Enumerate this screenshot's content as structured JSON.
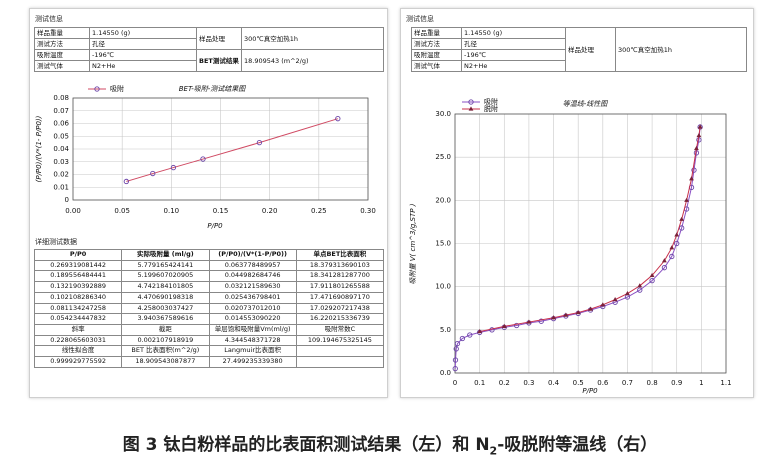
{
  "left_panel": {
    "heading": "测试信息",
    "info": [
      [
        "样品重量",
        "1.14550 (g)",
        "样品处理",
        "300℃真空加热1h"
      ],
      [
        "测试方法",
        "孔径"
      ],
      [
        "吸附温度",
        "-196℃",
        "BET测试结果",
        "18.909543 (m^2/g)"
      ],
      [
        "测试气体",
        "N2+He"
      ]
    ],
    "detail_heading": "详细测试数据",
    "detail_header": [
      "P/P0",
      "实际吸附量 (ml/g)",
      "(P/P0)/(V*(1-P/P0))",
      "单点BET比表面积"
    ],
    "detail_rows": [
      [
        "0.269319081442",
        "5.779165424141",
        "0.063778489957",
        "18.379313690103"
      ],
      [
        "0.189556484441",
        "5.199607020905",
        "0.044982684746",
        "18.341281287700"
      ],
      [
        "0.132190392889",
        "4.742184101805",
        "0.032121589630",
        "17.911801265588"
      ],
      [
        "0.102108286340",
        "4.470690198318",
        "0.025436798401",
        "17.471690897170"
      ],
      [
        "0.081134247258",
        "4.258003037427",
        "0.020737012010",
        "17.029207217438"
      ],
      [
        "0.054234447832",
        "3.940367589616",
        "0.014553090220",
        "16.220215336739"
      ],
      [
        "斜率",
        "截距",
        "单层饱和吸附量Vm(ml/g)",
        "吸附常数C"
      ],
      [
        "0.228065603031",
        "0.002107918919",
        "4.344548371728",
        "109.194675325145"
      ],
      [
        "线性拟合度",
        "BET 比表面积(m^2/g)",
        "Langmuir比表面积"
      ],
      [
        "0.999929775592",
        "18.909543087877",
        "27.499235339380"
      ]
    ]
  },
  "right_panel": {
    "heading": "测试信息",
    "info": [
      [
        "样品重量",
        "1.14550 (g)",
        "样品处理",
        "300℃真空加热1h"
      ],
      [
        "测试方法",
        "孔径"
      ],
      [
        "吸附温度",
        "-196℃"
      ],
      [
        "测试气体",
        "N2+He"
      ]
    ]
  },
  "chart_data": [
    {
      "type": "line",
      "title": "BET-吸附-测试结果图",
      "xlabel": "P/P0",
      "ylabel": "(P/P0)/(V*(1- P/P0))",
      "xlim": [
        0,
        0.3
      ],
      "xticks": [
        {
          "value": 0,
          "label": "0.00"
        },
        0.05,
        {
          "value": 0.1,
          "label": "0.10"
        },
        0.15,
        {
          "value": 0.2,
          "label": "0.20"
        },
        0.25,
        {
          "value": 0.3,
          "label": "0.30"
        }
      ],
      "ylim": [
        0,
        0.08
      ],
      "yticks": [
        0,
        0.01,
        0.02,
        0.03,
        0.04,
        0.05,
        0.06,
        0.07,
        0.08
      ],
      "grid": true,
      "series": [
        {
          "name": "吸附",
          "color": "#d04a63",
          "marker": "circle",
          "marker_color": "#6b44a8",
          "x": [
            0.054234447832,
            0.081134247258,
            0.10210828634,
            0.132190392889,
            0.189556484441,
            0.269319081442
          ],
          "values": [
            0.01455309022,
            0.02073701201,
            0.025436798401,
            0.03212158963,
            0.044982684746,
            0.063778489957
          ]
        }
      ]
    },
    {
      "type": "line",
      "title": "等温线-线性图",
      "xlabel": "P/P0",
      "ylabel": "吸附量 V( cm^3/g,STP )",
      "xlim": [
        0,
        1.1
      ],
      "xticks": [
        0,
        0.1,
        0.2,
        0.3,
        0.4,
        0.5,
        0.6,
        0.7,
        0.8,
        0.9,
        1,
        1.1
      ],
      "ylim": [
        0,
        30
      ],
      "yticks": [
        {
          "value": 0,
          "label": "0.0"
        },
        {
          "value": 5,
          "label": "5.0"
        },
        {
          "value": 10,
          "label": "10.0"
        },
        {
          "value": 15,
          "label": "15.0"
        },
        {
          "value": 20,
          "label": "20.0"
        },
        {
          "value": 25,
          "label": "25.0"
        },
        {
          "value": 30,
          "label": "30.0"
        }
      ],
      "grid": true,
      "series": [
        {
          "name": "吸附",
          "color": "#8a4fc4",
          "marker": "circle",
          "marker_color": "#6b44a8",
          "x": [
            0.001,
            0.002,
            0.005,
            0.01,
            0.03,
            0.06,
            0.1,
            0.15,
            0.2,
            0.25,
            0.3,
            0.35,
            0.4,
            0.45,
            0.5,
            0.55,
            0.6,
            0.65,
            0.7,
            0.75,
            0.8,
            0.85,
            0.88,
            0.9,
            0.92,
            0.94,
            0.96,
            0.97,
            0.98,
            0.99,
            0.995
          ],
          "values": [
            0.5,
            1.5,
            2.8,
            3.4,
            4.0,
            4.4,
            4.7,
            5.0,
            5.3,
            5.5,
            5.8,
            6.0,
            6.3,
            6.6,
            6.9,
            7.3,
            7.7,
            8.2,
            8.8,
            9.6,
            10.7,
            12.2,
            13.5,
            15.0,
            16.8,
            19.0,
            21.5,
            23.5,
            25.5,
            27.0,
            28.5
          ]
        },
        {
          "name": "脱附",
          "color": "#c8304a",
          "marker": "triangle",
          "marker_color": "#7a2038",
          "x": [
            0.995,
            0.99,
            0.98,
            0.96,
            0.94,
            0.92,
            0.9,
            0.88,
            0.85,
            0.8,
            0.75,
            0.7,
            0.65,
            0.6,
            0.55,
            0.5,
            0.45,
            0.4,
            0.3,
            0.2,
            0.1
          ],
          "values": [
            28.5,
            27.5,
            26.0,
            22.5,
            20.0,
            17.8,
            16.0,
            14.5,
            13.0,
            11.3,
            10.1,
            9.2,
            8.5,
            7.9,
            7.4,
            7.0,
            6.7,
            6.4,
            5.9,
            5.4,
            4.8
          ]
        }
      ]
    }
  ],
  "caption": {
    "before": "图 3  钛白粉样品的比表面积测试结果（左）和 N",
    "subscript": "2",
    "after": "-吸脱附等温线（右）"
  }
}
